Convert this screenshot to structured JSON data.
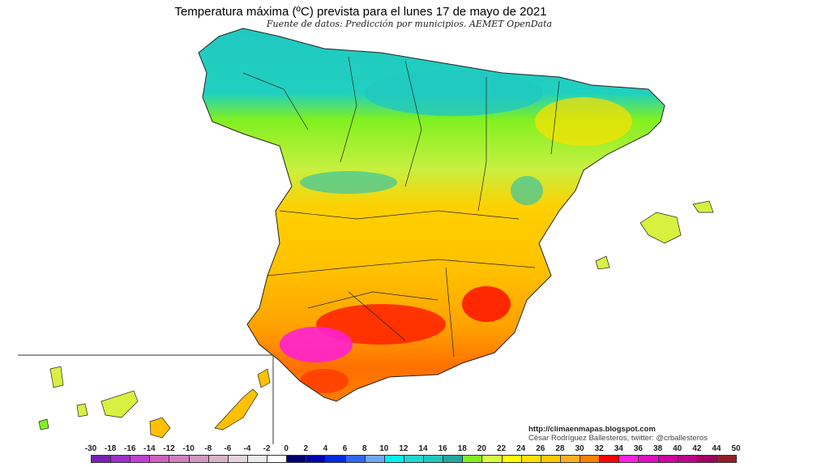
{
  "title": "Temperatura máxima (ºC) prevista para el lunes 17 de mayo de 2021",
  "subtitle": "Fuente de datos: Predicción por municipios. AEMET OpenData",
  "credits": {
    "url": "http://climaenmapas.blogspot.com",
    "author": "César Rodríguez Ballesteros, twitter: @crballesteros"
  },
  "legend": {
    "labels": [
      "-30",
      "-18",
      "-16",
      "-14",
      "-12",
      "-10",
      "-8",
      "-6",
      "-4",
      "-2",
      "0",
      "2",
      "4",
      "6",
      "8",
      "10",
      "12",
      "14",
      "16",
      "18",
      "20",
      "22",
      "24",
      "26",
      "28",
      "30",
      "32",
      "34",
      "36",
      "38",
      "40",
      "42",
      "44",
      "50"
    ],
    "colors": [
      "#7a20b0",
      "#9a30c8",
      "#c040d0",
      "#d060c0",
      "#d080c0",
      "#d098c0",
      "#d8b4c8",
      "#e4d4dc",
      "#ececec",
      "#ffffff",
      "#000070",
      "#0000b0",
      "#0028e0",
      "#3068f0",
      "#70a8f0",
      "#00f0f0",
      "#20d8d0",
      "#20c8c0",
      "#20a8a0",
      "#80f020",
      "#d8ff40",
      "#ffff00",
      "#ffe000",
      "#ffc800",
      "#ffb020",
      "#ff8000",
      "#ff0000",
      "#ff20e0",
      "#e010c0",
      "#d000a0",
      "#c00088",
      "#a00060",
      "#902028"
    ]
  }
}
